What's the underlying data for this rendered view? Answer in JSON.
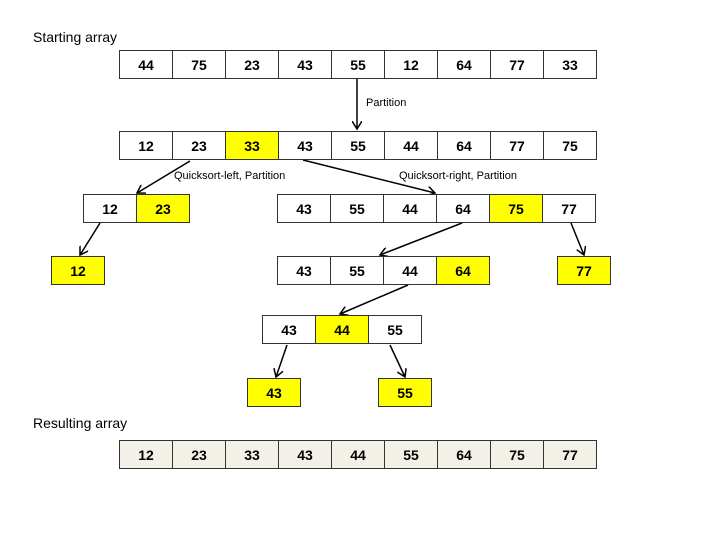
{
  "labels": {
    "start": "Starting array",
    "result": "Resulting array",
    "partition": "Partition",
    "left": "Quicksort-left, Partition",
    "right": "Quicksort-right, Partition"
  },
  "colors": {
    "highlight": "#ffff00",
    "result_fill": "#f3f0e8",
    "cell": "#ffffff"
  },
  "rows": [
    {
      "id": "starting-array",
      "cells": [
        {
          "v": "44"
        },
        {
          "v": "75"
        },
        {
          "v": "23"
        },
        {
          "v": "43"
        },
        {
          "v": "55"
        },
        {
          "v": "12"
        },
        {
          "v": "64"
        },
        {
          "v": "77"
        },
        {
          "v": "33"
        }
      ]
    },
    {
      "id": "partition-1",
      "cells": [
        {
          "v": "12"
        },
        {
          "v": "23"
        },
        {
          "v": "33",
          "h": true
        },
        {
          "v": "43"
        },
        {
          "v": "55"
        },
        {
          "v": "44"
        },
        {
          "v": "64"
        },
        {
          "v": "77"
        },
        {
          "v": "75"
        }
      ]
    },
    {
      "id": "left-sub",
      "cells": [
        {
          "v": "12"
        },
        {
          "v": "23",
          "h": true
        }
      ]
    },
    {
      "id": "right-sub",
      "cells": [
        {
          "v": "43"
        },
        {
          "v": "55"
        },
        {
          "v": "44"
        },
        {
          "v": "64"
        },
        {
          "v": "75",
          "h": true
        },
        {
          "v": "77"
        }
      ]
    },
    {
      "id": "left-leaf-12",
      "cells": [
        {
          "v": "12",
          "h": true
        }
      ]
    },
    {
      "id": "right-left-sub",
      "cells": [
        {
          "v": "43"
        },
        {
          "v": "55"
        },
        {
          "v": "44"
        },
        {
          "v": "64",
          "h": true
        }
      ]
    },
    {
      "id": "right-leaf-77",
      "cells": [
        {
          "v": "77",
          "h": true
        }
      ]
    },
    {
      "id": "inner-sub",
      "cells": [
        {
          "v": "43"
        },
        {
          "v": "44",
          "h": true
        },
        {
          "v": "55"
        }
      ]
    },
    {
      "id": "leaf-43",
      "cells": [
        {
          "v": "43",
          "h": true
        }
      ]
    },
    {
      "id": "leaf-55",
      "cells": [
        {
          "v": "55",
          "h": true
        }
      ]
    },
    {
      "id": "resulting-array",
      "result": true,
      "cells": [
        {
          "v": "12"
        },
        {
          "v": "23"
        },
        {
          "v": "33"
        },
        {
          "v": "43"
        },
        {
          "v": "44"
        },
        {
          "v": "55"
        },
        {
          "v": "64"
        },
        {
          "v": "75"
        },
        {
          "v": "77"
        }
      ]
    }
  ]
}
